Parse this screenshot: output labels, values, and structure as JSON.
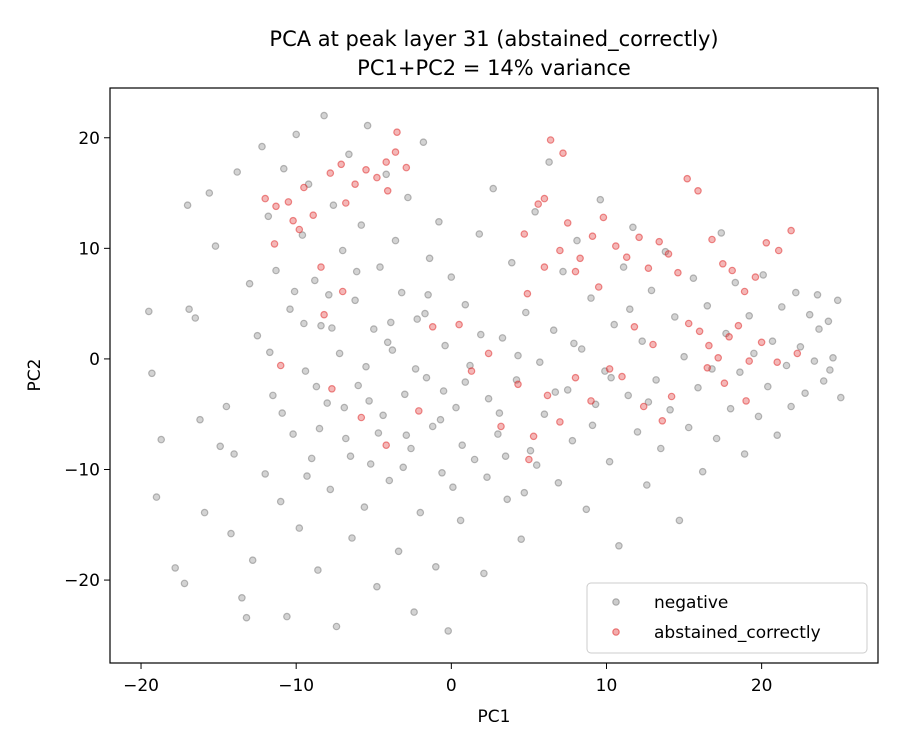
{
  "chart_data": {
    "type": "scatter",
    "title_line1": "PCA at peak layer 31 (abstained_correctly)",
    "title_line2": "PC1+PC2 = 14% variance",
    "xlabel": "PC1",
    "ylabel": "PC2",
    "xlim": [
      -22,
      27.5
    ],
    "ylim": [
      -27.5,
      24.5
    ],
    "xticks": [
      -20,
      -10,
      0,
      10,
      20
    ],
    "yticks": [
      -20,
      -10,
      0,
      10,
      20
    ],
    "legend_position": "lower-right",
    "series": [
      {
        "name": "negative",
        "color": "#808080",
        "points": [
          [
            -19.5,
            4.3
          ],
          [
            -19.3,
            -1.3
          ],
          [
            -19.0,
            -12.5
          ],
          [
            -18.7,
            -7.3
          ],
          [
            -17.8,
            -18.9
          ],
          [
            -17.2,
            -20.3
          ],
          [
            -17.0,
            13.9
          ],
          [
            -16.9,
            4.5
          ],
          [
            -16.5,
            3.7
          ],
          [
            -16.2,
            -5.5
          ],
          [
            -15.9,
            -13.9
          ],
          [
            -15.6,
            15.0
          ],
          [
            -15.2,
            10.2
          ],
          [
            -14.9,
            -7.9
          ],
          [
            -14.5,
            -4.3
          ],
          [
            -14.2,
            -15.8
          ],
          [
            -14.0,
            -8.6
          ],
          [
            -13.8,
            16.9
          ],
          [
            -13.5,
            -21.6
          ],
          [
            -13.2,
            -23.4
          ],
          [
            -13.0,
            6.8
          ],
          [
            -12.8,
            -18.2
          ],
          [
            -12.5,
            2.1
          ],
          [
            -12.2,
            19.2
          ],
          [
            -12.0,
            -10.4
          ],
          [
            -11.8,
            12.9
          ],
          [
            -11.5,
            -3.3
          ],
          [
            -11.3,
            8.0
          ],
          [
            -11.0,
            -12.9
          ],
          [
            -10.8,
            17.2
          ],
          [
            -10.6,
            -23.3
          ],
          [
            -10.4,
            4.5
          ],
          [
            -10.2,
            -6.8
          ],
          [
            -10.0,
            20.3
          ],
          [
            -9.8,
            -15.3
          ],
          [
            -9.6,
            11.2
          ],
          [
            -9.4,
            -1.1
          ],
          [
            -9.2,
            15.8
          ],
          [
            -9.0,
            -9.0
          ],
          [
            -8.8,
            7.1
          ],
          [
            -8.6,
            -19.1
          ],
          [
            -8.4,
            3.0
          ],
          [
            -8.2,
            22.0
          ],
          [
            -8.0,
            -4.0
          ],
          [
            -7.8,
            -11.8
          ],
          [
            -7.6,
            13.9
          ],
          [
            -7.4,
            -24.2
          ],
          [
            -7.2,
            0.5
          ],
          [
            -7.0,
            9.8
          ],
          [
            -6.8,
            -7.2
          ],
          [
            -6.6,
            18.5
          ],
          [
            -6.4,
            -16.2
          ],
          [
            -6.2,
            5.3
          ],
          [
            -6.0,
            -2.4
          ],
          [
            -5.8,
            12.1
          ],
          [
            -5.6,
            -13.4
          ],
          [
            -5.4,
            21.1
          ],
          [
            -5.2,
            -9.5
          ],
          [
            -5.0,
            2.7
          ],
          [
            -4.8,
            -20.6
          ],
          [
            -4.6,
            8.3
          ],
          [
            -4.4,
            -5.1
          ],
          [
            -4.2,
            16.7
          ],
          [
            -4.0,
            -11.0
          ],
          [
            -3.8,
            0.8
          ],
          [
            -3.6,
            10.7
          ],
          [
            -3.4,
            -17.4
          ],
          [
            -3.2,
            6.0
          ],
          [
            -3.0,
            -3.2
          ],
          [
            -2.8,
            14.6
          ],
          [
            -2.6,
            -8.1
          ],
          [
            -2.4,
            -22.9
          ],
          [
            -2.2,
            3.6
          ],
          [
            -2.0,
            -13.9
          ],
          [
            -1.8,
            19.6
          ],
          [
            -1.6,
            -1.7
          ],
          [
            -1.4,
            9.1
          ],
          [
            -1.2,
            -6.1
          ],
          [
            -1.0,
            -18.8
          ],
          [
            -0.8,
            12.4
          ],
          [
            -0.6,
            -10.3
          ],
          [
            -0.4,
            1.2
          ],
          [
            -0.2,
            -24.6
          ],
          [
            0.0,
            7.4
          ],
          [
            0.3,
            -4.4
          ],
          [
            0.6,
            -14.6
          ],
          [
            0.9,
            4.9
          ],
          [
            1.2,
            -0.6
          ],
          [
            1.5,
            -9.1
          ],
          [
            1.8,
            11.3
          ],
          [
            2.1,
            -19.4
          ],
          [
            2.4,
            -3.6
          ],
          [
            2.7,
            15.4
          ],
          [
            3.0,
            -6.8
          ],
          [
            3.3,
            1.9
          ],
          [
            3.6,
            -12.7
          ],
          [
            3.9,
            8.7
          ],
          [
            4.2,
            -1.9
          ],
          [
            4.5,
            -16.3
          ],
          [
            4.8,
            4.2
          ],
          [
            5.1,
            -8.3
          ],
          [
            5.4,
            13.3
          ],
          [
            5.7,
            -0.3
          ],
          [
            6.0,
            -5.0
          ],
          [
            6.3,
            17.8
          ],
          [
            6.6,
            2.6
          ],
          [
            6.9,
            -11.2
          ],
          [
            7.2,
            7.9
          ],
          [
            7.5,
            -2.8
          ],
          [
            7.8,
            -7.4
          ],
          [
            8.1,
            10.7
          ],
          [
            8.4,
            0.9
          ],
          [
            8.7,
            -13.6
          ],
          [
            9.0,
            5.5
          ],
          [
            9.3,
            -4.1
          ],
          [
            9.6,
            14.4
          ],
          [
            9.9,
            -1.1
          ],
          [
            10.2,
            -9.3
          ],
          [
            10.5,
            3.1
          ],
          [
            10.8,
            -16.9
          ],
          [
            11.1,
            8.3
          ],
          [
            11.4,
            -3.3
          ],
          [
            11.7,
            11.9
          ],
          [
            12.0,
            -6.6
          ],
          [
            12.3,
            1.6
          ],
          [
            12.6,
            -11.4
          ],
          [
            12.9,
            6.2
          ],
          [
            13.2,
            -1.9
          ],
          [
            13.5,
            -8.1
          ],
          [
            13.8,
            9.7
          ],
          [
            14.1,
            -4.6
          ],
          [
            14.4,
            3.8
          ],
          [
            14.7,
            -14.6
          ],
          [
            15.0,
            0.2
          ],
          [
            15.3,
            -6.2
          ],
          [
            15.6,
            7.3
          ],
          [
            15.9,
            -2.6
          ],
          [
            16.2,
            -10.2
          ],
          [
            16.5,
            4.8
          ],
          [
            16.8,
            -0.9
          ],
          [
            17.1,
            -7.2
          ],
          [
            17.4,
            11.4
          ],
          [
            17.7,
            2.3
          ],
          [
            18.0,
            -4.5
          ],
          [
            18.3,
            6.9
          ],
          [
            18.6,
            -1.2
          ],
          [
            18.9,
            -8.6
          ],
          [
            19.2,
            3.9
          ],
          [
            19.5,
            0.5
          ],
          [
            19.8,
            -5.2
          ],
          [
            20.1,
            7.6
          ],
          [
            20.4,
            -2.5
          ],
          [
            20.7,
            1.6
          ],
          [
            21.0,
            -6.9
          ],
          [
            21.3,
            4.7
          ],
          [
            21.6,
            -0.6
          ],
          [
            21.9,
            -4.3
          ],
          [
            22.2,
            6.0
          ],
          [
            22.5,
            1.1
          ],
          [
            22.8,
            -3.1
          ],
          [
            23.1,
            4.0
          ],
          [
            23.4,
            -0.2
          ],
          [
            23.7,
            2.7
          ],
          [
            24.0,
            -2.0
          ],
          [
            24.3,
            3.4
          ],
          [
            24.6,
            0.1
          ],
          [
            24.9,
            5.3
          ],
          [
            25.1,
            -3.5
          ],
          [
            24.4,
            -1.0
          ],
          [
            23.6,
            5.8
          ],
          [
            -9.5,
            3.2
          ],
          [
            -8.7,
            -2.5
          ],
          [
            -7.9,
            5.8
          ],
          [
            -6.5,
            -8.8
          ],
          [
            -5.3,
            -3.8
          ],
          [
            -4.1,
            1.5
          ],
          [
            -2.9,
            -6.9
          ],
          [
            -1.7,
            4.1
          ],
          [
            -0.5,
            -2.9
          ],
          [
            0.7,
            -7.8
          ],
          [
            1.9,
            2.2
          ],
          [
            3.1,
            -4.9
          ],
          [
            4.3,
            0.3
          ],
          [
            5.5,
            -9.6
          ],
          [
            6.7,
            -3.0
          ],
          [
            7.9,
            1.4
          ],
          [
            9.1,
            -6.0
          ],
          [
            10.3,
            -1.7
          ],
          [
            11.5,
            4.5
          ],
          [
            12.7,
            -3.9
          ],
          [
            -11.7,
            0.6
          ],
          [
            -10.9,
            -4.9
          ],
          [
            -10.1,
            6.1
          ],
          [
            -9.3,
            -10.6
          ],
          [
            -8.5,
            -6.3
          ],
          [
            -7.7,
            2.8
          ],
          [
            -6.9,
            -4.4
          ],
          [
            -6.1,
            7.9
          ],
          [
            -5.5,
            -0.7
          ],
          [
            -4.7,
            -6.7
          ],
          [
            -3.9,
            3.3
          ],
          [
            -3.1,
            -9.8
          ],
          [
            -2.3,
            -0.9
          ],
          [
            -1.5,
            5.8
          ],
          [
            -0.7,
            -5.5
          ],
          [
            0.1,
            -11.6
          ],
          [
            0.9,
            -2.1
          ],
          [
            2.3,
            -10.7
          ],
          [
            3.5,
            -8.8
          ],
          [
            4.7,
            -12.1
          ]
        ]
      },
      {
        "name": "abstained_correctly",
        "color": "#e03030",
        "points": [
          [
            -12.0,
            14.5
          ],
          [
            -11.3,
            13.8
          ],
          [
            -10.5,
            14.2
          ],
          [
            -10.2,
            12.5
          ],
          [
            -9.5,
            15.5
          ],
          [
            -8.9,
            13.0
          ],
          [
            -7.8,
            16.8
          ],
          [
            -7.1,
            17.6
          ],
          [
            -6.2,
            15.8
          ],
          [
            -5.5,
            17.1
          ],
          [
            -4.8,
            16.4
          ],
          [
            -4.2,
            17.8
          ],
          [
            -3.6,
            18.7
          ],
          [
            -2.9,
            17.3
          ],
          [
            -3.5,
            20.5
          ],
          [
            -4.1,
            15.2
          ],
          [
            -6.8,
            14.1
          ],
          [
            -9.8,
            11.7
          ],
          [
            -11.4,
            10.4
          ],
          [
            -8.4,
            8.3
          ],
          [
            -7.0,
            6.1
          ],
          [
            -8.2,
            4.0
          ],
          [
            -11.0,
            -0.6
          ],
          [
            -7.7,
            -2.7
          ],
          [
            -5.8,
            -5.3
          ],
          [
            -4.2,
            -7.8
          ],
          [
            -2.1,
            -4.7
          ],
          [
            -1.2,
            2.9
          ],
          [
            0.5,
            3.1
          ],
          [
            1.3,
            -1.1
          ],
          [
            2.4,
            0.5
          ],
          [
            3.2,
            -6.1
          ],
          [
            4.3,
            -2.3
          ],
          [
            5.0,
            -9.1
          ],
          [
            4.7,
            11.3
          ],
          [
            5.6,
            14.0
          ],
          [
            6.4,
            19.8
          ],
          [
            7.2,
            18.6
          ],
          [
            6.0,
            14.5
          ],
          [
            7.5,
            12.3
          ],
          [
            8.3,
            9.1
          ],
          [
            9.1,
            11.1
          ],
          [
            9.8,
            12.8
          ],
          [
            10.6,
            10.2
          ],
          [
            11.3,
            9.2
          ],
          [
            12.1,
            11.0
          ],
          [
            12.7,
            8.2
          ],
          [
            13.4,
            10.6
          ],
          [
            14.0,
            9.5
          ],
          [
            14.6,
            7.8
          ],
          [
            15.2,
            16.3
          ],
          [
            15.9,
            15.2
          ],
          [
            16.8,
            10.8
          ],
          [
            17.5,
            8.6
          ],
          [
            18.1,
            8.0
          ],
          [
            18.9,
            6.1
          ],
          [
            19.6,
            7.4
          ],
          [
            20.3,
            10.5
          ],
          [
            21.1,
            9.8
          ],
          [
            21.9,
            11.6
          ],
          [
            15.3,
            3.2
          ],
          [
            16.0,
            2.5
          ],
          [
            16.6,
            1.2
          ],
          [
            17.2,
            0.1
          ],
          [
            17.9,
            2.0
          ],
          [
            18.5,
            3.0
          ],
          [
            19.2,
            -0.2
          ],
          [
            20.0,
            1.5
          ],
          [
            21.0,
            -0.3
          ],
          [
            22.3,
            0.5
          ],
          [
            10.2,
            -0.9
          ],
          [
            11.0,
            -1.6
          ],
          [
            12.4,
            -4.3
          ],
          [
            13.6,
            -5.6
          ],
          [
            14.2,
            -3.4
          ],
          [
            9.0,
            -3.8
          ],
          [
            8.0,
            -1.7
          ],
          [
            7.0,
            -5.7
          ],
          [
            6.2,
            -3.3
          ],
          [
            5.3,
            -7.0
          ],
          [
            16.5,
            -0.8
          ],
          [
            17.6,
            -2.2
          ],
          [
            19.0,
            -3.8
          ],
          [
            13.0,
            1.3
          ],
          [
            11.8,
            2.9
          ],
          [
            9.5,
            6.5
          ],
          [
            8.0,
            7.9
          ],
          [
            7.0,
            9.8
          ],
          [
            6.0,
            8.3
          ],
          [
            4.9,
            5.9
          ]
        ]
      }
    ]
  }
}
